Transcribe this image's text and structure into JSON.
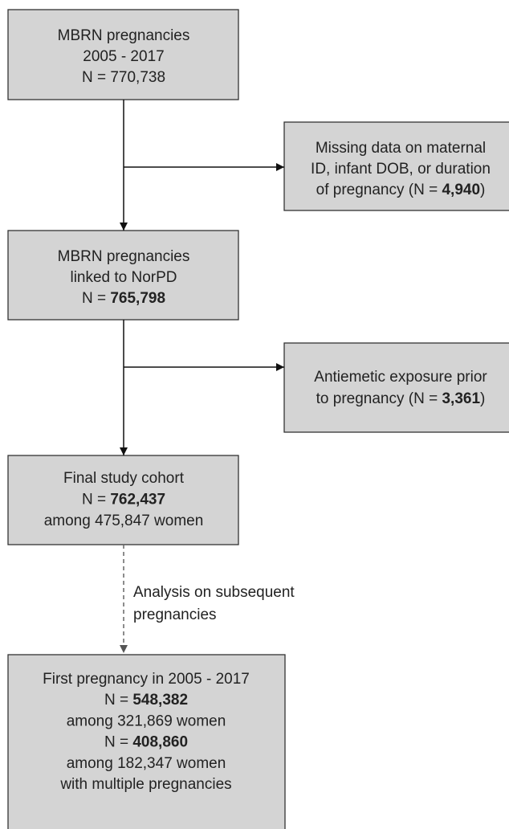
{
  "nodes": [
    {
      "lines": [
        [
          {
            "text": "MBRN pregnancies"
          }
        ],
        [
          {
            "text": "2005 - 2017"
          }
        ],
        [
          {
            "text": "N = 770,738"
          }
        ]
      ]
    },
    {
      "lines": [
        [
          {
            "text": "Missing data on maternal"
          }
        ],
        [
          {
            "text": "ID, infant DOB, or duration"
          }
        ],
        [
          {
            "text": "of pregnancy (N = "
          },
          {
            "text": "4,940",
            "bold": true
          },
          {
            "text": ")"
          }
        ]
      ]
    },
    {
      "lines": [
        [
          {
            "text": "MBRN pregnancies"
          }
        ],
        [
          {
            "text": "linked to NorPD"
          }
        ],
        [
          {
            "text": "N = "
          },
          {
            "text": "765,798",
            "bold": true
          }
        ]
      ]
    },
    {
      "lines": [
        [
          {
            "text": "Antiemetic exposure prior"
          }
        ],
        [
          {
            "text": "to pregnancy (N = "
          },
          {
            "text": "3,361",
            "bold": true
          },
          {
            "text": ")"
          }
        ]
      ]
    },
    {
      "lines": [
        [
          {
            "text": "Final study cohort"
          }
        ],
        [
          {
            "text": "N = "
          },
          {
            "text": "762,437",
            "bold": true
          }
        ],
        [
          {
            "text": "among 475,847 women"
          }
        ]
      ]
    },
    {
      "lines": [
        [
          {
            "text": "First pregnancy in 2005 - 2017"
          }
        ],
        [
          {
            "text": "N = "
          },
          {
            "text": "548,382",
            "bold": true
          }
        ],
        [
          {
            "text": "among 321,869 women"
          }
        ],
        [
          {
            "text": "N = "
          },
          {
            "text": "408,860",
            "bold": true
          }
        ],
        [
          {
            "text": "among 182,347 women"
          }
        ],
        [
          {
            "text": "with multiple pregnancies"
          }
        ]
      ]
    }
  ],
  "edge_label": {
    "lines": [
      "Analysis on subsequent",
      "pregnancies"
    ]
  }
}
